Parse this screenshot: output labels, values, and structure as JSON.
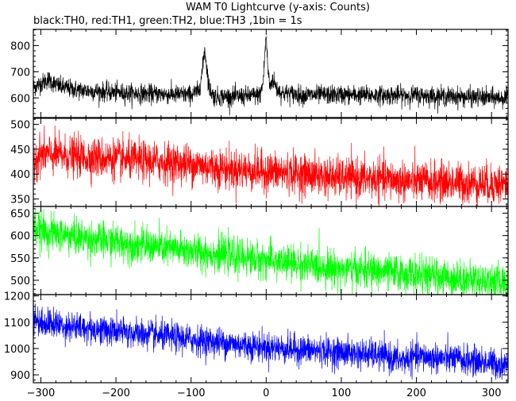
{
  "chart_data": {
    "type": "line",
    "title": "WAM T0 Lightcurve (y-axis: Counts)",
    "subtitle": "black:TH0, red:TH1, green:TH2, blue:TH3 ,1bin = 1s",
    "xlabel": "",
    "ylabel": "",
    "xlim": [
      -310,
      322
    ],
    "x_ticks": [
      -300,
      -200,
      -100,
      0,
      100,
      200,
      300
    ],
    "x_tick_labels": [
      "−300",
      "−200",
      "−100",
      "0",
      "100",
      "200",
      "300"
    ],
    "x_minor_step": 20,
    "grid": false,
    "legend": "none",
    "panels": [
      {
        "name": "TH0",
        "color": "#000000",
        "ylim": [
          525,
          862
        ],
        "y_ticks": [
          600,
          700,
          800
        ],
        "y_tick_labels": [
          "600",
          "700",
          "800"
        ],
        "y_minor_step": 20,
        "series_points": [
          [
            -310,
            640
          ],
          [
            -300,
            655
          ],
          [
            -290,
            670
          ],
          [
            -280,
            650
          ],
          [
            -270,
            640
          ],
          [
            -250,
            630
          ],
          [
            -200,
            620
          ],
          [
            -150,
            615
          ],
          [
            -100,
            612
          ],
          [
            -90,
            625
          ],
          [
            -85,
            700
          ],
          [
            -82,
            790
          ],
          [
            -80,
            740
          ],
          [
            -76,
            640
          ],
          [
            -70,
            605
          ],
          [
            -40,
            605
          ],
          [
            -20,
            608
          ],
          [
            -8,
            612
          ],
          [
            -4,
            660
          ],
          [
            -2,
            760
          ],
          [
            0,
            840
          ],
          [
            2,
            720
          ],
          [
            5,
            640
          ],
          [
            8,
            670
          ],
          [
            11,
            660
          ],
          [
            14,
            635
          ],
          [
            20,
            620
          ],
          [
            50,
            610
          ],
          [
            100,
            612
          ],
          [
            150,
            610
          ],
          [
            200,
            610
          ],
          [
            250,
            605
          ],
          [
            300,
            600
          ],
          [
            322,
            600
          ]
        ],
        "noise_sd": 18
      },
      {
        "name": "TH1",
        "color": "#ff0000",
        "ylim": [
          335,
          512
        ],
        "y_ticks": [
          350,
          400,
          450,
          500
        ],
        "y_tick_labels": [
          "350",
          "400",
          "450",
          "500"
        ],
        "y_minor_step": 10,
        "series_points": [
          [
            -310,
            430
          ],
          [
            -300,
            440
          ],
          [
            -250,
            435
          ],
          [
            -200,
            430
          ],
          [
            -150,
            425
          ],
          [
            -100,
            420
          ],
          [
            -50,
            410
          ],
          [
            0,
            405
          ],
          [
            50,
            400
          ],
          [
            100,
            392
          ],
          [
            150,
            390
          ],
          [
            200,
            385
          ],
          [
            250,
            383
          ],
          [
            300,
            380
          ],
          [
            322,
            380
          ]
        ],
        "noise_sd": 20
      },
      {
        "name": "TH2",
        "color": "#00ff00",
        "ylim": [
          468,
          665
        ],
        "y_ticks": [
          500,
          550,
          600,
          650
        ],
        "y_tick_labels": [
          "500",
          "550",
          "600",
          "650"
        ],
        "y_minor_step": 10,
        "series_points": [
          [
            -310,
            620
          ],
          [
            -300,
            610
          ],
          [
            -250,
            595
          ],
          [
            -200,
            585
          ],
          [
            -150,
            575
          ],
          [
            -100,
            565
          ],
          [
            -50,
            555
          ],
          [
            0,
            545
          ],
          [
            50,
            535
          ],
          [
            100,
            525
          ],
          [
            150,
            520
          ],
          [
            200,
            512
          ],
          [
            250,
            505
          ],
          [
            300,
            498
          ],
          [
            322,
            495
          ]
        ],
        "noise_sd": 20
      },
      {
        "name": "TH3",
        "color": "#0000ff",
        "ylim": [
          870,
          1205
        ],
        "y_ticks": [
          900,
          1000,
          1100,
          1200
        ],
        "y_tick_labels": [
          "900",
          "1000",
          "1100",
          "1200"
        ],
        "y_minor_step": 20,
        "series_points": [
          [
            -310,
            1120
          ],
          [
            -300,
            1100
          ],
          [
            -250,
            1080
          ],
          [
            -200,
            1065
          ],
          [
            -150,
            1050
          ],
          [
            -100,
            1035
          ],
          [
            -50,
            1020
          ],
          [
            0,
            1005
          ],
          [
            50,
            995
          ],
          [
            100,
            985
          ],
          [
            150,
            975
          ],
          [
            180,
            955
          ],
          [
            200,
            970
          ],
          [
            250,
            960
          ],
          [
            300,
            945
          ],
          [
            322,
            935
          ]
        ],
        "noise_sd": 28
      }
    ]
  }
}
